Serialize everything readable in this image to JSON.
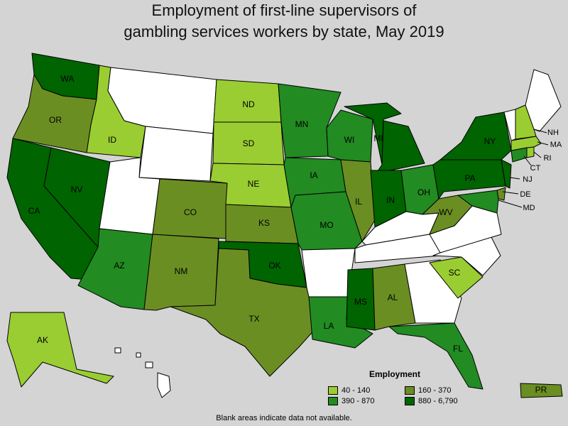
{
  "title_lines": [
    "Employment of first-line supervisors of",
    "gambling services workers by state, May 2019"
  ],
  "legend": {
    "title": "Employment",
    "items": [
      {
        "label": "40 - 140",
        "color": "#9acd32"
      },
      {
        "label": "160 - 370",
        "color": "#6b8e23"
      },
      {
        "label": "390 - 870",
        "color": "#228b22"
      },
      {
        "label": "880 - 6,790",
        "color": "#006400"
      }
    ]
  },
  "footnote": "Blank areas indicate data not available.",
  "colors": {
    "background": "#d4d4d4",
    "no_data": "#ffffff",
    "bin1": "#9acd32",
    "bin2": "#6b8e23",
    "bin3": "#228b22",
    "bin4": "#006400"
  },
  "states": [
    {
      "code": "WA",
      "bin": "880 - 6,790"
    },
    {
      "code": "OR",
      "bin": "160 - 370"
    },
    {
      "code": "CA",
      "bin": "880 - 6,790"
    },
    {
      "code": "NV",
      "bin": "880 - 6,790"
    },
    {
      "code": "ID",
      "bin": "40 - 140"
    },
    {
      "code": "MT",
      "bin": null
    },
    {
      "code": "WY",
      "bin": null
    },
    {
      "code": "UT",
      "bin": null
    },
    {
      "code": "AZ",
      "bin": "390 - 870"
    },
    {
      "code": "CO",
      "bin": "160 - 370"
    },
    {
      "code": "NM",
      "bin": "160 - 370"
    },
    {
      "code": "ND",
      "bin": "40 - 140"
    },
    {
      "code": "SD",
      "bin": "40 - 140"
    },
    {
      "code": "NE",
      "bin": "40 - 140"
    },
    {
      "code": "KS",
      "bin": "160 - 370"
    },
    {
      "code": "OK",
      "bin": "880 - 6,790"
    },
    {
      "code": "TX",
      "bin": "160 - 370"
    },
    {
      "code": "MN",
      "bin": "390 - 870"
    },
    {
      "code": "IA",
      "bin": "390 - 870"
    },
    {
      "code": "MO",
      "bin": "390 - 870"
    },
    {
      "code": "AR",
      "bin": null
    },
    {
      "code": "LA",
      "bin": "390 - 870"
    },
    {
      "code": "WI",
      "bin": "390 - 870"
    },
    {
      "code": "IL",
      "bin": "160 - 370"
    },
    {
      "code": "MS",
      "bin": "880 - 6,790"
    },
    {
      "code": "MI",
      "bin": "880 - 6,790"
    },
    {
      "code": "IN",
      "bin": "880 - 6,790"
    },
    {
      "code": "OH",
      "bin": "390 - 870"
    },
    {
      "code": "KY",
      "bin": null
    },
    {
      "code": "TN",
      "bin": null
    },
    {
      "code": "AL",
      "bin": "160 - 370"
    },
    {
      "code": "GA",
      "bin": null
    },
    {
      "code": "FL",
      "bin": "390 - 870"
    },
    {
      "code": "SC",
      "bin": "40 - 140"
    },
    {
      "code": "NC",
      "bin": null
    },
    {
      "code": "VA",
      "bin": null
    },
    {
      "code": "WV",
      "bin": "160 - 370"
    },
    {
      "code": "PA",
      "bin": "880 - 6,790"
    },
    {
      "code": "NY",
      "bin": "880 - 6,790"
    },
    {
      "code": "NJ",
      "bin": "880 - 6,790"
    },
    {
      "code": "DE",
      "bin": "160 - 370"
    },
    {
      "code": "MD",
      "bin": "390 - 870"
    },
    {
      "code": "CT",
      "bin": "390 - 870"
    },
    {
      "code": "RI",
      "bin": "40 - 140"
    },
    {
      "code": "MA",
      "bin": "40 - 140"
    },
    {
      "code": "VT",
      "bin": null
    },
    {
      "code": "NH",
      "bin": "40 - 140"
    },
    {
      "code": "ME",
      "bin": null
    },
    {
      "code": "AK",
      "bin": "40 - 140"
    },
    {
      "code": "HI",
      "bin": null
    },
    {
      "code": "PR",
      "bin": "160 - 370"
    }
  ]
}
